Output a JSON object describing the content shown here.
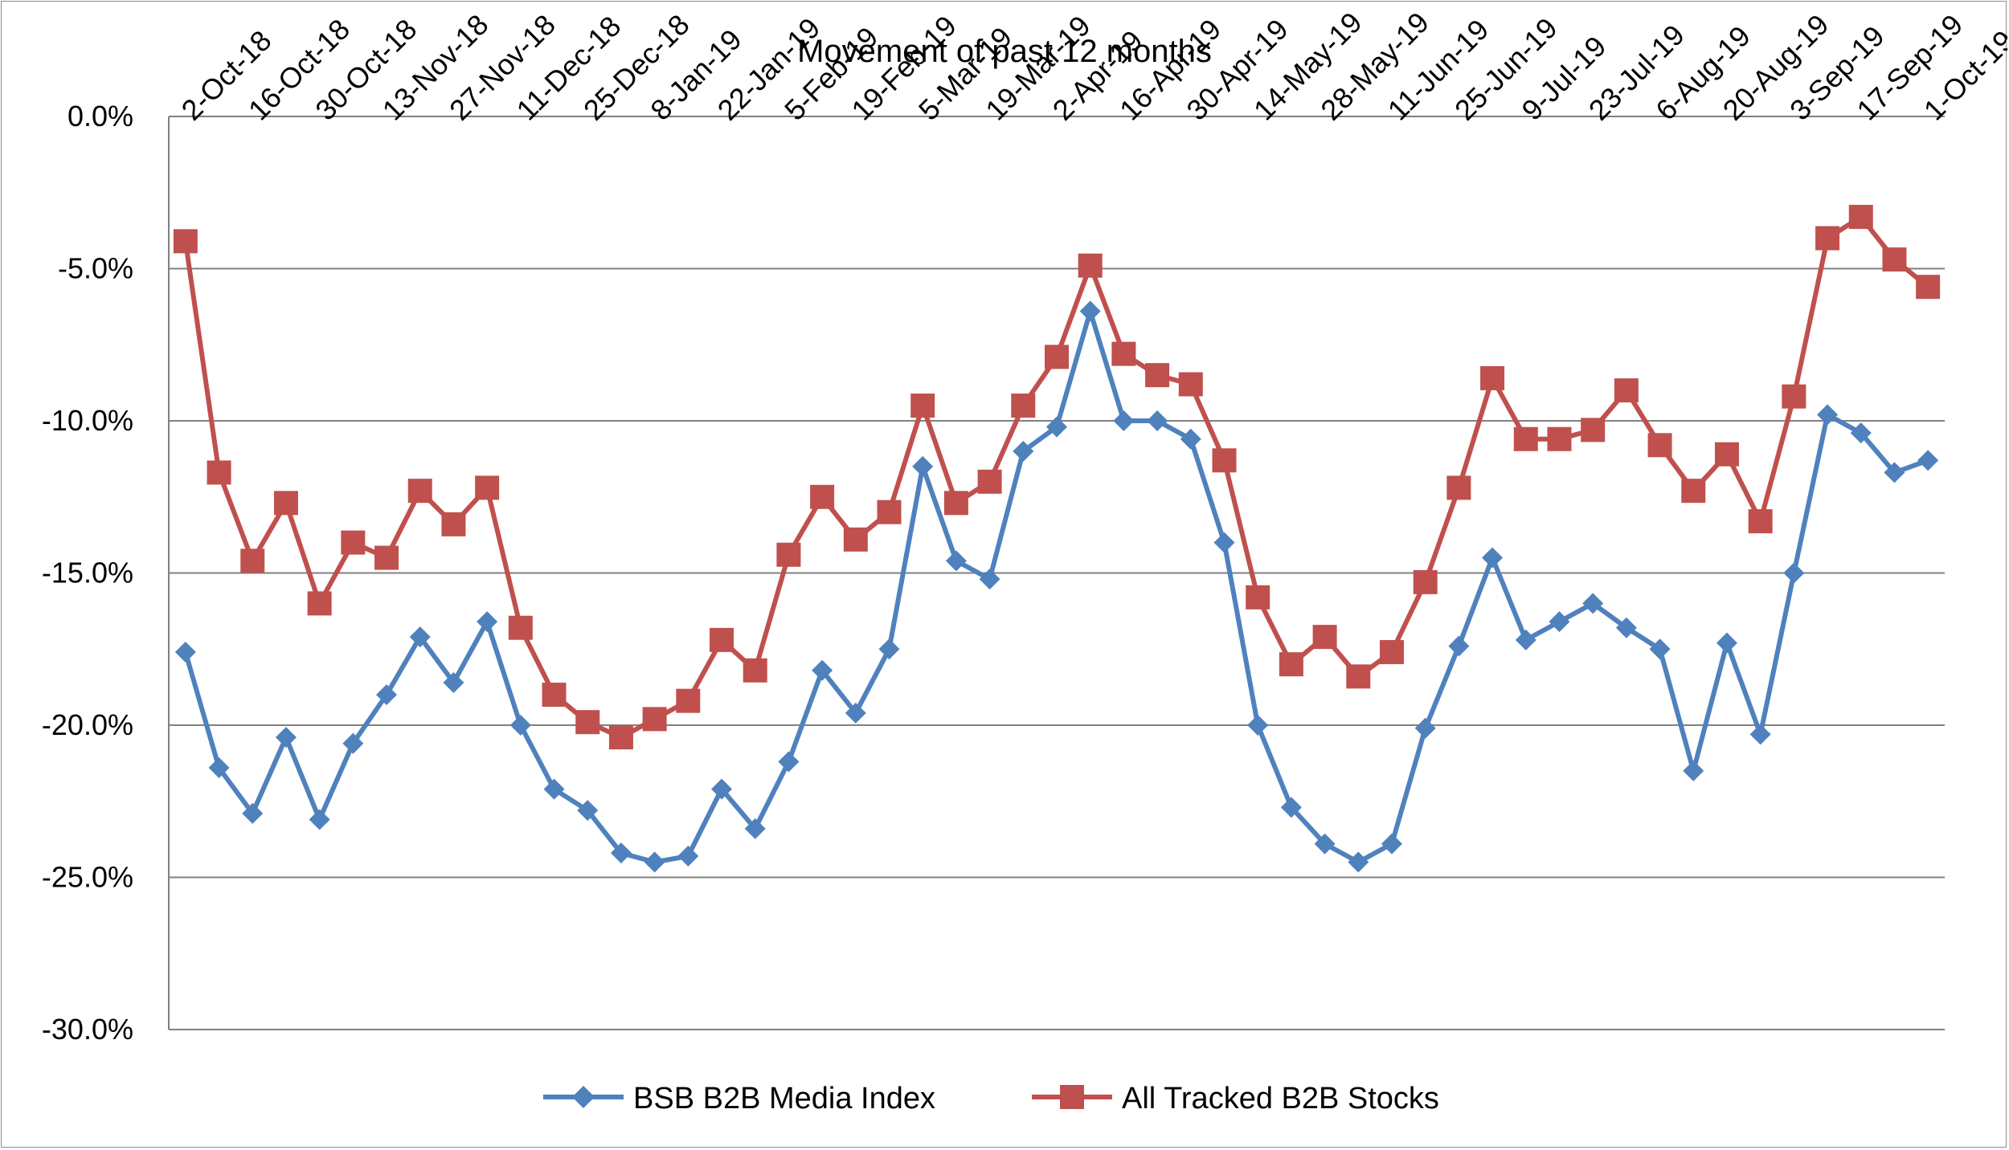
{
  "chart_data": {
    "type": "line",
    "title": "Movement of past 12 months",
    "xlabel": "",
    "ylabel": "",
    "ylim": [
      -30,
      0
    ],
    "y_ticks": [
      0,
      -5,
      -10,
      -15,
      -20,
      -25,
      -30
    ],
    "y_tick_format": "percent_1dp",
    "grid": "horizontal",
    "legend_position": "bottom",
    "x_tick_labels": [
      "2-Oct-18",
      "16-Oct-18",
      "30-Oct-18",
      "13-Nov-18",
      "27-Nov-18",
      "11-Dec-18",
      "25-Dec-18",
      "8-Jan-19",
      "22-Jan-19",
      "5-Feb-19",
      "19-Feb-19",
      "5-Mar-19",
      "19-Mar-19",
      "2-Apr-19",
      "16-Apr-19",
      "30-Apr-19",
      "14-May-19",
      "28-May-19",
      "11-Jun-19",
      "25-Jun-19",
      "9-Jul-19",
      "23-Jul-19",
      "6-Aug-19",
      "20-Aug-19",
      "3-Sep-19",
      "17-Sep-19",
      "1-Oct-19"
    ],
    "colors": {
      "bsb": "#4f81bd",
      "all": "#c0504d",
      "grid": "#808080",
      "axis": "#808080"
    },
    "series": [
      {
        "name": "BSB B2B Media Index",
        "marker": "diamond",
        "values": [
          -17.6,
          -21.4,
          -22.9,
          -20.4,
          -23.1,
          -20.6,
          -19.0,
          -17.1,
          -18.6,
          -16.6,
          -20.0,
          -22.1,
          -22.8,
          -24.2,
          -24.5,
          -24.3,
          -22.1,
          -23.4,
          -21.2,
          -18.2,
          -19.6,
          -17.5,
          -11.5,
          -14.6,
          -15.2,
          -11.0,
          -10.2,
          -6.4,
          -10.0,
          -10.0,
          -10.6,
          -14.0,
          -20.0,
          -22.7,
          -23.9,
          -24.5,
          -23.9,
          -20.1,
          -17.4,
          -14.5,
          -17.2,
          -16.6,
          -16.0,
          -16.8,
          -17.5,
          -21.5,
          -17.3,
          -20.3,
          -15.0,
          -9.8,
          -10.4,
          -11.7,
          -11.3
        ]
      },
      {
        "name": "All Tracked B2B Stocks",
        "marker": "square",
        "values": [
          -4.1,
          -11.7,
          -14.6,
          -12.7,
          -16.0,
          -14.0,
          -14.5,
          -12.3,
          -13.4,
          -12.2,
          -16.8,
          -19.0,
          -19.9,
          -20.4,
          -19.8,
          -19.2,
          -17.2,
          -18.2,
          -14.4,
          -12.5,
          -13.9,
          -13.0,
          -9.5,
          -12.7,
          -12.0,
          -9.5,
          -7.9,
          -4.9,
          -7.8,
          -8.5,
          -8.8,
          -11.3,
          -15.8,
          -18.0,
          -17.1,
          -18.4,
          -17.6,
          -15.3,
          -12.2,
          -8.6,
          -10.6,
          -10.6,
          -10.3,
          -9.0,
          -10.8,
          -12.3,
          -11.1,
          -13.3,
          -9.2,
          -4.0,
          -3.3,
          -4.7,
          -5.6
        ]
      }
    ]
  }
}
